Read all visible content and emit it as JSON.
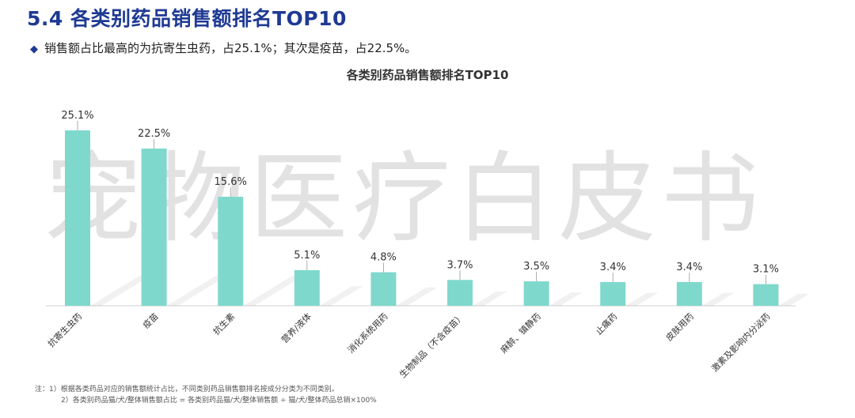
{
  "slide": {
    "title": "5.4 各类别药品销售额排名TOP10",
    "summary": "销售额占比最高的为抗寄生虫药，占25.1%；其次是疫苗，占22.5%。",
    "watermark": "宠物医疗白皮书",
    "notes": [
      "注：1）根据各类药品对应的销售额统计占比，不同类别药品销售额排名按成分分类为不同类别。",
      "2）各类别药品猫/犬/整体销售额占比 = 各类别药品猫/犬/整体销售额 ÷ 猫/犬/整体药品总销×100%"
    ]
  },
  "colors": {
    "title": "#1f3a93",
    "bar": "#7fd8cc"
  },
  "chart_data": {
    "type": "bar",
    "title": "各类别药品销售额排名TOP10",
    "categories": [
      "抗寄生虫药",
      "疫苗",
      "抗生素",
      "营养/液体",
      "消化系统用药",
      "生物制品（不含疫苗）",
      "麻醉、镇静药",
      "止痛药",
      "皮肤用药",
      "激素及影响内分泌药"
    ],
    "values": [
      25.1,
      22.5,
      15.6,
      5.1,
      4.8,
      3.7,
      3.5,
      3.4,
      3.4,
      3.1
    ],
    "data_labels": [
      "25.1%",
      "22.5%",
      "15.6%",
      "5.1%",
      "4.8%",
      "3.7%",
      "3.5%",
      "3.4%",
      "3.4%",
      "3.1%"
    ],
    "ylim": [
      0,
      25.1
    ],
    "grid": false,
    "legend": false
  }
}
